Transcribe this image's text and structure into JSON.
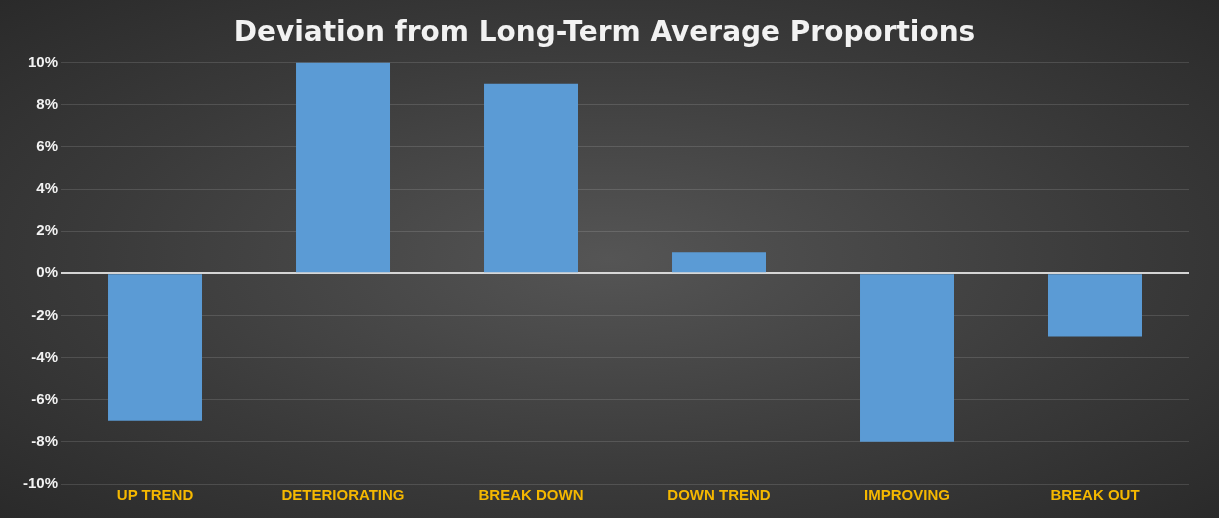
{
  "chart_data": {
    "type": "bar",
    "title": "Deviation from Long-Term Average Proportions",
    "categories": [
      "UP TREND",
      "DETERIORATING",
      "BREAK DOWN",
      "DOWN TREND",
      "IMPROVING",
      "BREAK OUT"
    ],
    "values": [
      -7,
      10,
      9,
      1,
      -8,
      -3
    ],
    "color": "#5b9bd5",
    "ylim": [
      -10,
      10
    ],
    "yticks": [
      {
        "value": -10,
        "label": "-10%"
      },
      {
        "value": -8,
        "label": "-8%"
      },
      {
        "value": -6,
        "label": "-6%"
      },
      {
        "value": -4,
        "label": "-4%"
      },
      {
        "value": -2,
        "label": "-2%"
      },
      {
        "value": 0,
        "label": "0%"
      },
      {
        "value": 2,
        "label": "2%"
      },
      {
        "value": 4,
        "label": "4%"
      },
      {
        "value": 6,
        "label": "6%"
      },
      {
        "value": 8,
        "label": "8%"
      },
      {
        "value": 10,
        "label": "10%"
      }
    ],
    "grid": "y"
  }
}
